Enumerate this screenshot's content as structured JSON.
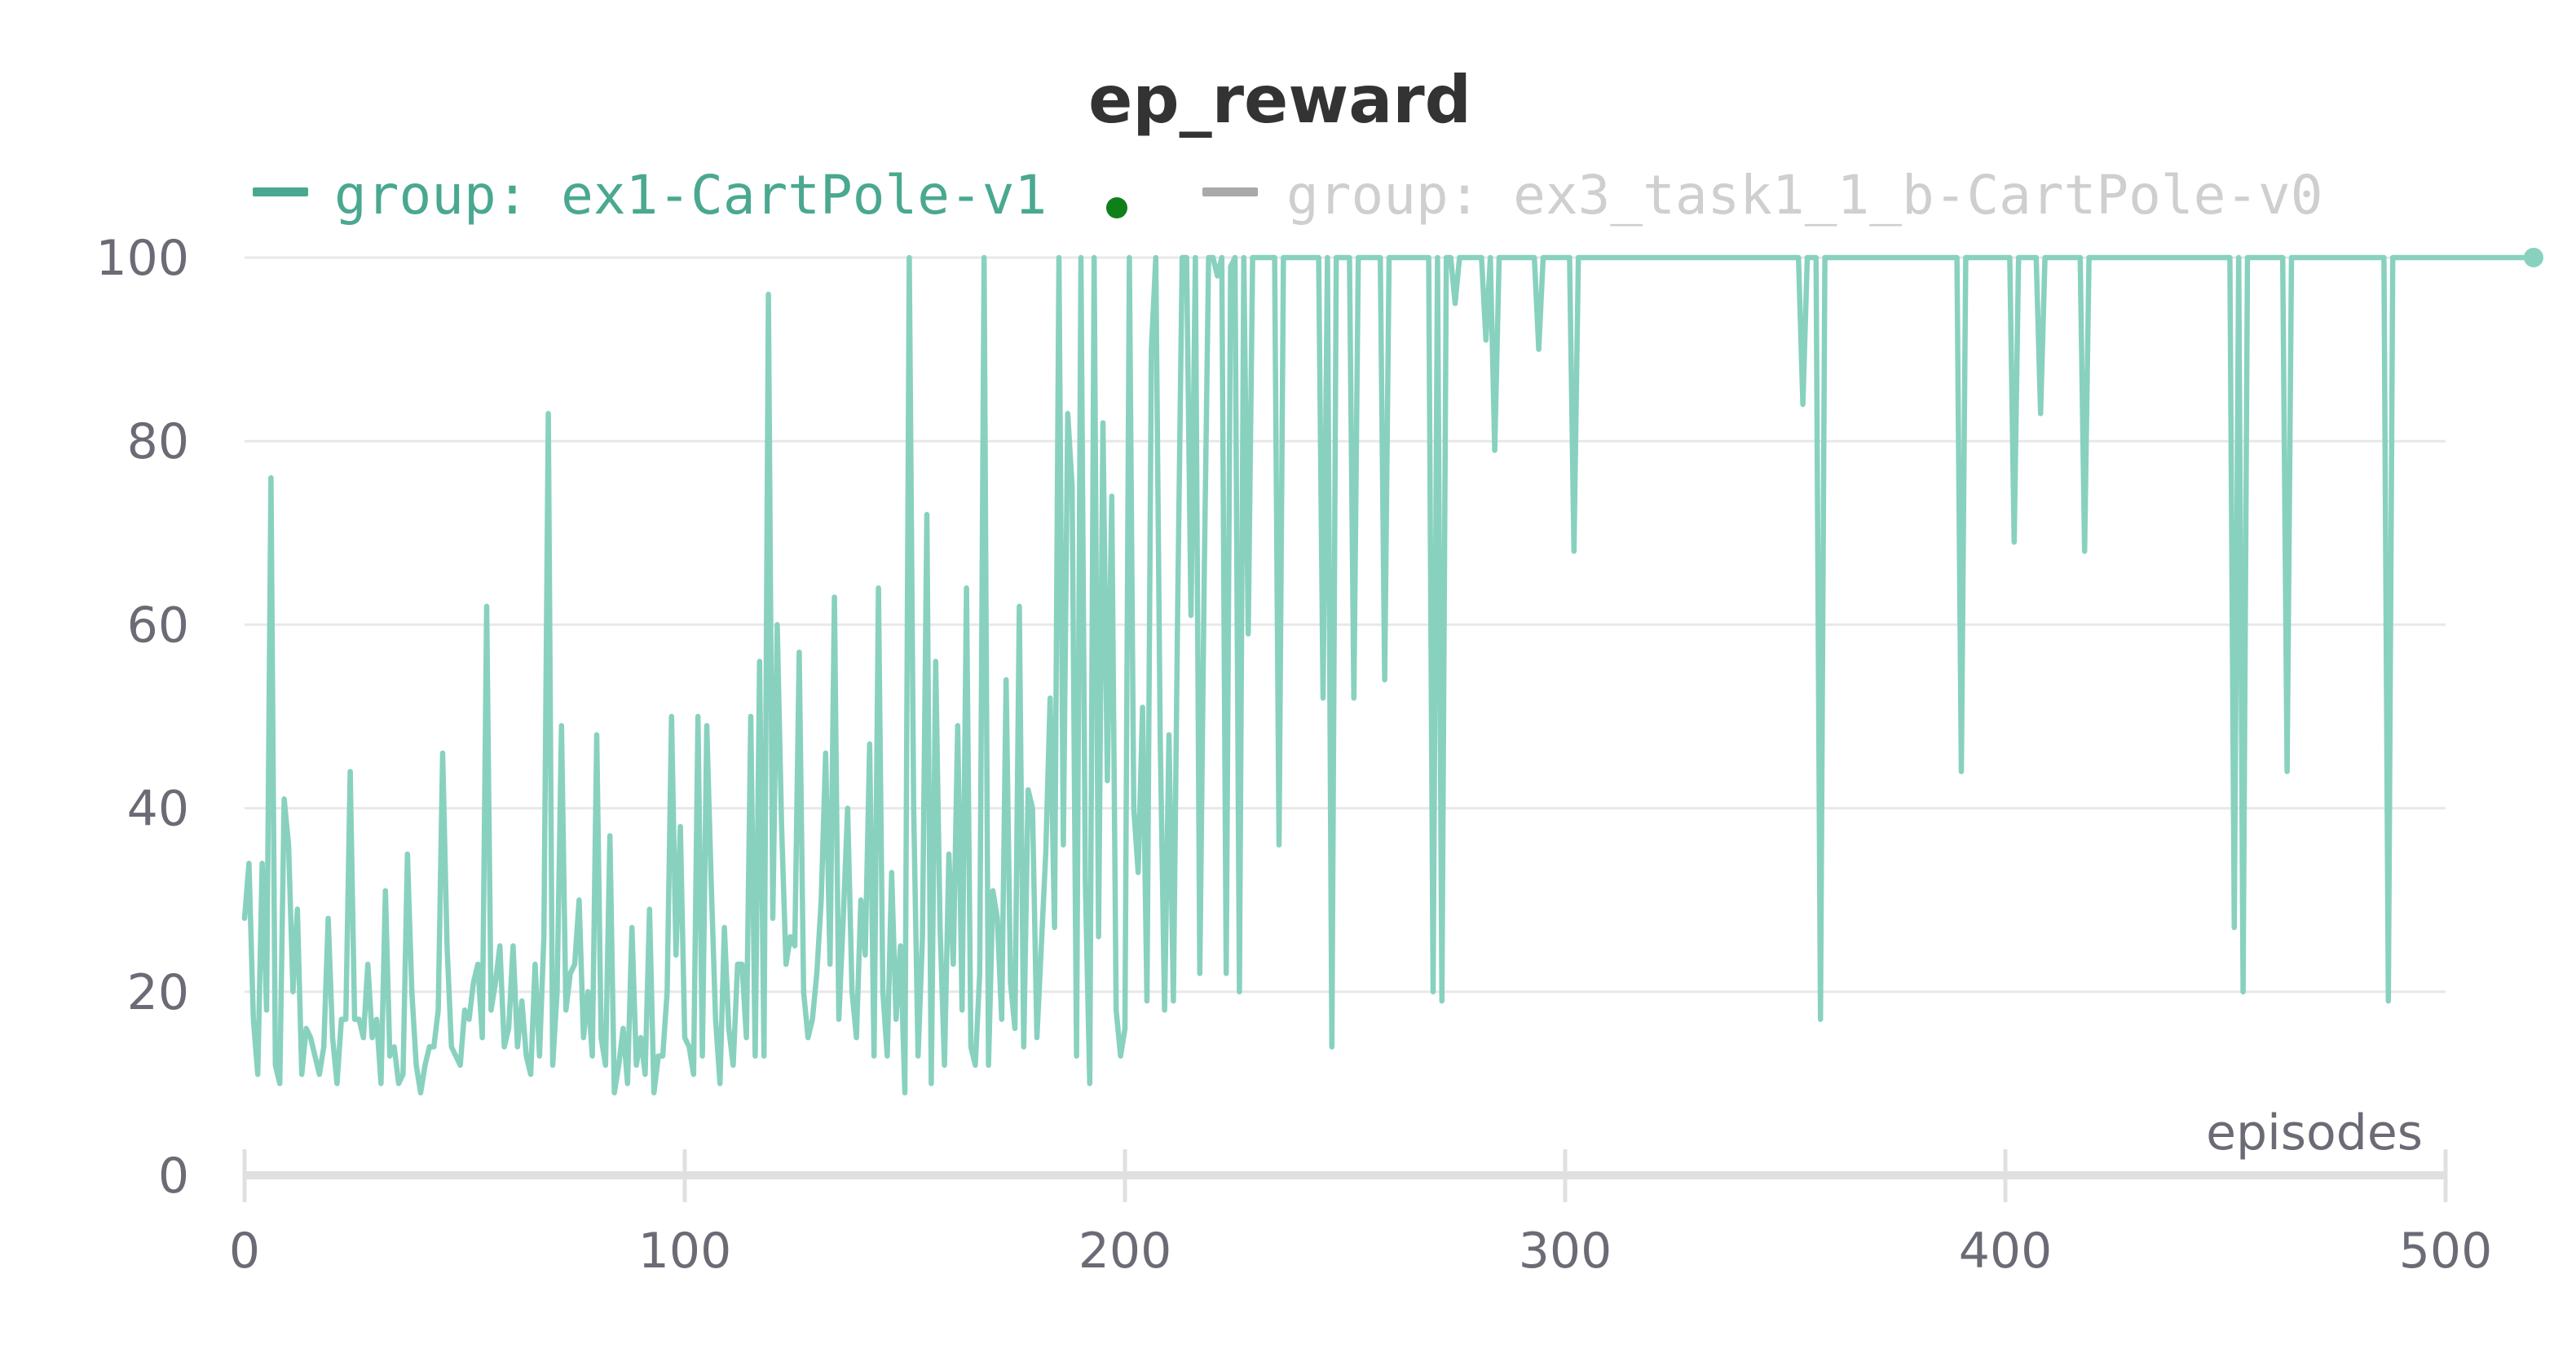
{
  "colors": {
    "series_active": "#88d1bf",
    "legend_active_text": "#4aa890",
    "legend_inactive": "#a9a9a9",
    "legend_inactive_text": "#cfcfcf",
    "status_dot": "#0f7f1a",
    "grid": "#e8e8e8",
    "axis": "#e0e0e0",
    "tick_label": "#6b6b76",
    "title": "#333333"
  },
  "chart_data": {
    "type": "line",
    "title": "ep_reward",
    "xlabel": "episodes",
    "ylabel": "",
    "xlim": [
      0,
      500
    ],
    "ylim": [
      0,
      100
    ],
    "x_ticks": [
      0,
      100,
      200,
      300,
      400,
      500
    ],
    "y_ticks": [
      0,
      20,
      40,
      60,
      80,
      100
    ],
    "grid": true,
    "legend_position": "top",
    "legend": [
      {
        "label": "group: ex1-CartPole-v1",
        "active": true,
        "status_dot": "running-dot"
      },
      {
        "label": "group: ex3_task1_1_b-CartPole-v0",
        "active": false
      }
    ],
    "series": [
      {
        "name": "group: ex1-CartPole-v1",
        "x_start": 0,
        "x_step": 1,
        "values": [
          28,
          34,
          17,
          11,
          34,
          18,
          76,
          12,
          10,
          41,
          36,
          20,
          29,
          11,
          16,
          15,
          13,
          11,
          14,
          28,
          15,
          10,
          17,
          17,
          44,
          17,
          17,
          15,
          23,
          15,
          17,
          10,
          31,
          13,
          14,
          10,
          11,
          35,
          20,
          12,
          9,
          12,
          14,
          14,
          18,
          46,
          25,
          14,
          13,
          12,
          18,
          17,
          21,
          23,
          15,
          62,
          18,
          21,
          25,
          14,
          16,
          25,
          14,
          19,
          13,
          11,
          23,
          13,
          26,
          83,
          12,
          20,
          49,
          18,
          22,
          23,
          30,
          15,
          20,
          13,
          48,
          15,
          12,
          37,
          9,
          12,
          16,
          10,
          27,
          12,
          15,
          11,
          29,
          9,
          13,
          13,
          20,
          50,
          24,
          38,
          15,
          14,
          11,
          50,
          13,
          49,
          32,
          17,
          10,
          27,
          16,
          12,
          23,
          23,
          15,
          50,
          13,
          56,
          13,
          96,
          28,
          60,
          38,
          23,
          26,
          25,
          57,
          20,
          15,
          17,
          22,
          30,
          46,
          23,
          63,
          17,
          28,
          40,
          20,
          15,
          30,
          24,
          47,
          13,
          64,
          20,
          13,
          33,
          17,
          25,
          9,
          100,
          40,
          13,
          26,
          72,
          10,
          56,
          27,
          12,
          35,
          23,
          49,
          18,
          64,
          14,
          12,
          22,
          100,
          12,
          31,
          28,
          17,
          54,
          21,
          16,
          62,
          14,
          42,
          40,
          15,
          25,
          35,
          52,
          27,
          100,
          36,
          83,
          75,
          13,
          100,
          32,
          10,
          100,
          26,
          82,
          43,
          74,
          18,
          13,
          16,
          100,
          40,
          33,
          51,
          19,
          90,
          100,
          48,
          18,
          48,
          19,
          63,
          100,
          100,
          61,
          100,
          22,
          65,
          100,
          100,
          98,
          100,
          22,
          99,
          100,
          20,
          100,
          59,
          100,
          100,
          100,
          100,
          100,
          100,
          36,
          100,
          100,
          100,
          100,
          100,
          100,
          100,
          100,
          100,
          52,
          100,
          14,
          100,
          100,
          100,
          100,
          52,
          100,
          100,
          100,
          100,
          100,
          100,
          54,
          100,
          100,
          100,
          100,
          100,
          100,
          100,
          100,
          100,
          100,
          20,
          100,
          19,
          100,
          100,
          95,
          100,
          100,
          100,
          100,
          100,
          100,
          91,
          100,
          79,
          100,
          100,
          100,
          100,
          100,
          100,
          100,
          100,
          100,
          90,
          100,
          100,
          100,
          100,
          100,
          100,
          100,
          68,
          100,
          100,
          100,
          100,
          100,
          100,
          100,
          100,
          100,
          100,
          100,
          100,
          100,
          100,
          100,
          100,
          100,
          100,
          100,
          100,
          100,
          100,
          100,
          100,
          100,
          100,
          100,
          100,
          100,
          100,
          100,
          100,
          100,
          100,
          100,
          100,
          100,
          100,
          100,
          100,
          100,
          100,
          100,
          100,
          100,
          100,
          100,
          100,
          100,
          100,
          100,
          84,
          100,
          100,
          100,
          17,
          100,
          100,
          100,
          100,
          100,
          100,
          100,
          100,
          100,
          100,
          100,
          100,
          100,
          100,
          100,
          100,
          100,
          100,
          100,
          100,
          100,
          100,
          100,
          100,
          100,
          100,
          100,
          100,
          100,
          100,
          100,
          44,
          100,
          100,
          100,
          100,
          100,
          100,
          100,
          100,
          100,
          100,
          100,
          69,
          100,
          100,
          100,
          100,
          100,
          83,
          100,
          100,
          100,
          100,
          100,
          100,
          100,
          100,
          100,
          68,
          100,
          100,
          100,
          100,
          100,
          100,
          100,
          100,
          100,
          100,
          100,
          100,
          100,
          100,
          100,
          100,
          100,
          100,
          100,
          100,
          100,
          100,
          100,
          100,
          100,
          100,
          100,
          100,
          100,
          100,
          100,
          100,
          100,
          27,
          100,
          20,
          100,
          100,
          100,
          100,
          100,
          100,
          100,
          100,
          100,
          44,
          100,
          100,
          100,
          100,
          100,
          100,
          100,
          100,
          100,
          100,
          100,
          100,
          100,
          100,
          100,
          100,
          100,
          100,
          100,
          100,
          100,
          100,
          19,
          100,
          100,
          100,
          100,
          100,
          100,
          100,
          100,
          100,
          100,
          100,
          100,
          100,
          100,
          100,
          100,
          100,
          100,
          100,
          100,
          100,
          100,
          100,
          100,
          100,
          100,
          100,
          100,
          100,
          100,
          100,
          100,
          100
        ]
      }
    ]
  }
}
